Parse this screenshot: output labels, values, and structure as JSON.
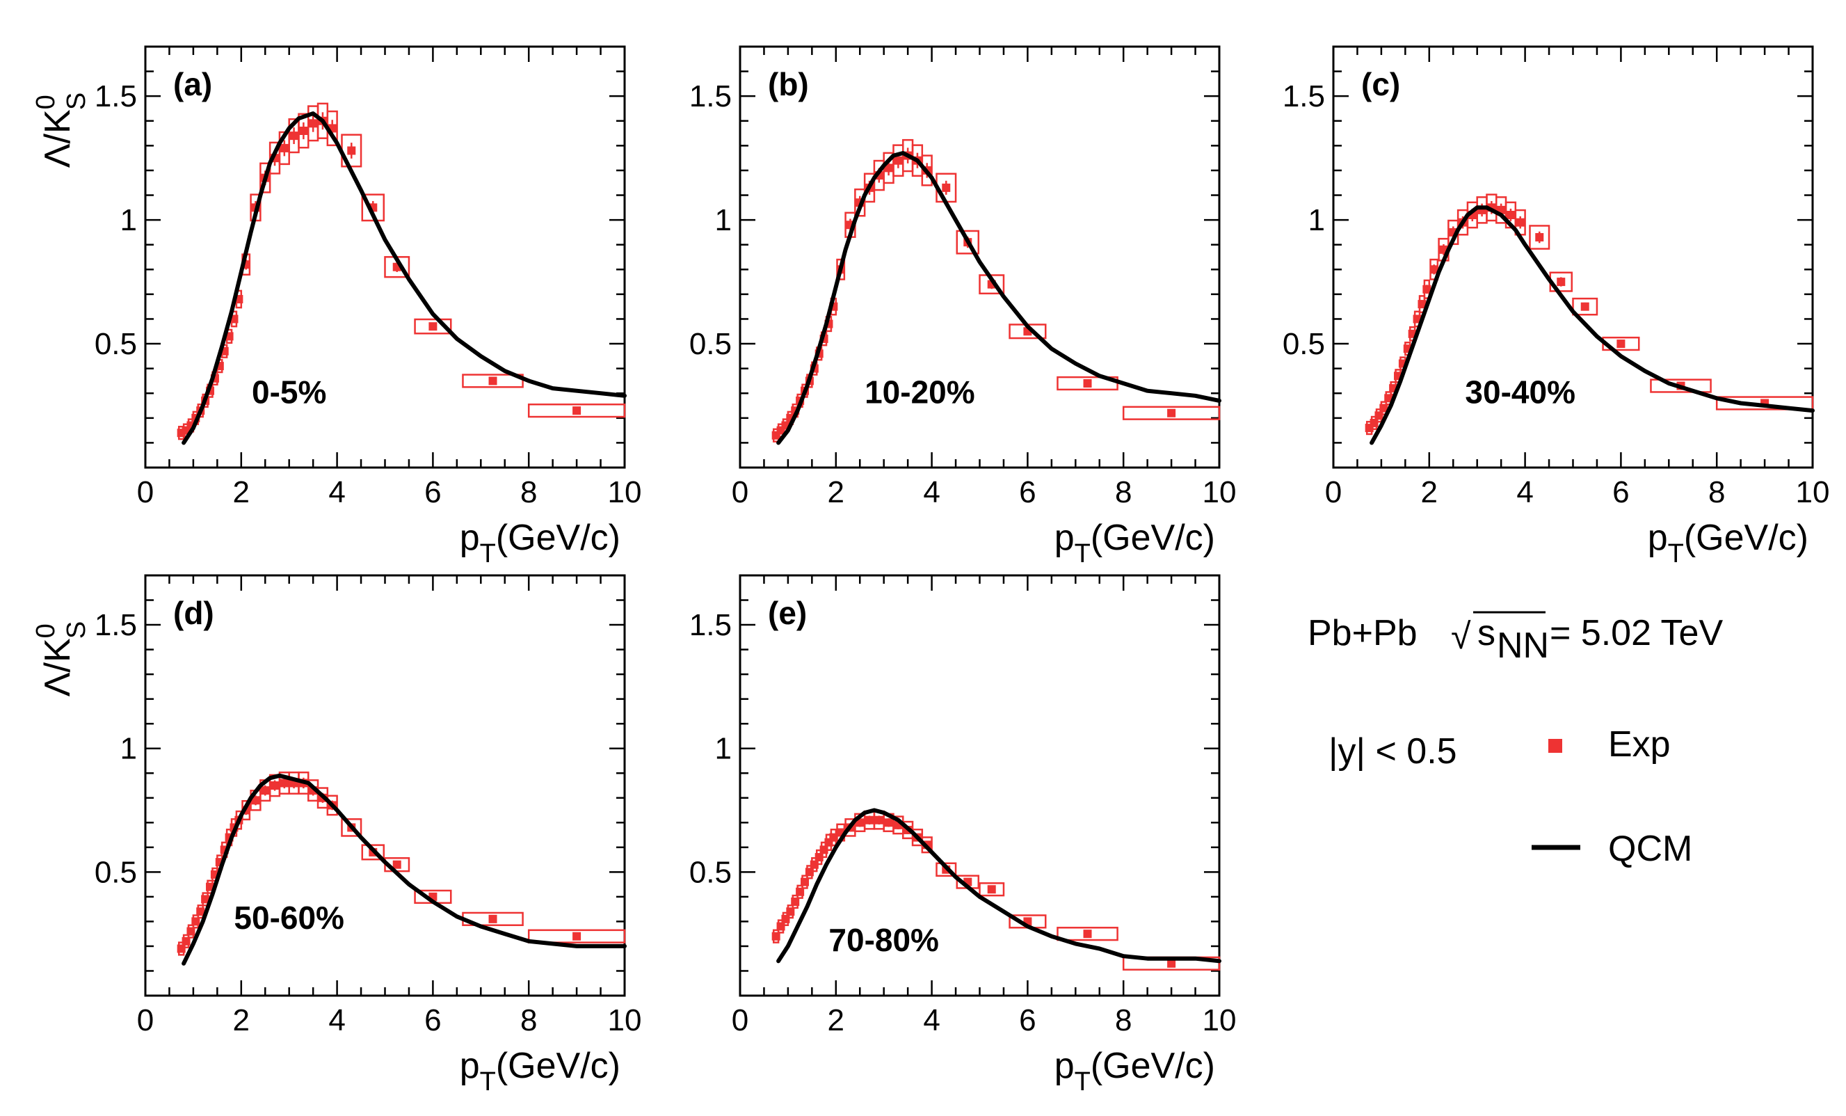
{
  "legend": {
    "system": "Pb+Pb",
    "sqrt_s_nn": "= 5.02 TeV",
    "rapidity": "|y| < 0.5",
    "exp_label": "Exp",
    "model_label": "QCM",
    "exp_color": "#ee3333",
    "model_color": "#000000"
  },
  "axis_text": {
    "xlabel_main": "p",
    "xlabel_sub": "T",
    "xlabel_unit": "(GeV/c)",
    "ylabel_main": "Λ/K",
    "ylabel_sup": "0",
    "ylabel_sub": "S"
  },
  "chart_data": [
    {
      "type": "scatter",
      "tag": "(a)",
      "centrality": "0-5%",
      "xlim": [
        0,
        10
      ],
      "ylim": [
        0,
        1.7
      ],
      "xticks": [
        "0",
        "2",
        "4",
        "6",
        "8",
        "10"
      ],
      "yticks": [
        "0.5",
        "1",
        "1.5"
      ],
      "exp": [
        [
          0.75,
          0.14
        ],
        [
          0.85,
          0.15
        ],
        [
          0.95,
          0.17
        ],
        [
          1.05,
          0.2
        ],
        [
          1.15,
          0.23
        ],
        [
          1.25,
          0.27
        ],
        [
          1.35,
          0.31
        ],
        [
          1.45,
          0.36
        ],
        [
          1.55,
          0.41
        ],
        [
          1.65,
          0.47
        ],
        [
          1.75,
          0.53
        ],
        [
          1.85,
          0.6
        ],
        [
          1.95,
          0.68
        ],
        [
          2.1,
          0.82
        ],
        [
          2.3,
          1.05
        ],
        [
          2.5,
          1.17
        ],
        [
          2.7,
          1.25
        ],
        [
          2.9,
          1.29
        ],
        [
          3.1,
          1.34
        ],
        [
          3.3,
          1.36
        ],
        [
          3.5,
          1.39
        ],
        [
          3.7,
          1.4
        ],
        [
          3.9,
          1.37
        ],
        [
          4.3,
          1.28
        ],
        [
          4.75,
          1.05
        ],
        [
          5.25,
          0.81
        ],
        [
          6.0,
          0.57
        ],
        [
          7.25,
          0.35
        ],
        [
          9.0,
          0.23
        ]
      ],
      "model": [
        [
          0.8,
          0.1
        ],
        [
          1.0,
          0.16
        ],
        [
          1.2,
          0.25
        ],
        [
          1.4,
          0.36
        ],
        [
          1.6,
          0.49
        ],
        [
          1.8,
          0.63
        ],
        [
          2.0,
          0.79
        ],
        [
          2.2,
          0.95
        ],
        [
          2.4,
          1.1
        ],
        [
          2.6,
          1.23
        ],
        [
          2.8,
          1.31
        ],
        [
          3.0,
          1.37
        ],
        [
          3.2,
          1.41
        ],
        [
          3.5,
          1.43
        ],
        [
          3.7,
          1.4
        ],
        [
          4.0,
          1.31
        ],
        [
          4.5,
          1.12
        ],
        [
          5.0,
          0.92
        ],
        [
          5.5,
          0.76
        ],
        [
          6.0,
          0.62
        ],
        [
          6.5,
          0.52
        ],
        [
          7.0,
          0.45
        ],
        [
          7.5,
          0.39
        ],
        [
          8.0,
          0.35
        ],
        [
          8.5,
          0.32
        ],
        [
          9.0,
          0.31
        ],
        [
          9.5,
          0.3
        ],
        [
          10.0,
          0.29
        ]
      ]
    },
    {
      "type": "scatter",
      "tag": "(b)",
      "centrality": "10-20%",
      "xlim": [
        0,
        10
      ],
      "ylim": [
        0,
        1.7
      ],
      "xticks": [
        "0",
        "2",
        "4",
        "6",
        "8",
        "10"
      ],
      "yticks": [
        "0.5",
        "1",
        "1.5"
      ],
      "exp": [
        [
          0.75,
          0.13
        ],
        [
          0.85,
          0.15
        ],
        [
          0.95,
          0.17
        ],
        [
          1.05,
          0.2
        ],
        [
          1.15,
          0.23
        ],
        [
          1.25,
          0.27
        ],
        [
          1.35,
          0.31
        ],
        [
          1.45,
          0.35
        ],
        [
          1.55,
          0.4
        ],
        [
          1.65,
          0.46
        ],
        [
          1.75,
          0.52
        ],
        [
          1.85,
          0.58
        ],
        [
          1.95,
          0.65
        ],
        [
          2.1,
          0.8
        ],
        [
          2.3,
          0.98
        ],
        [
          2.5,
          1.07
        ],
        [
          2.7,
          1.13
        ],
        [
          2.9,
          1.18
        ],
        [
          3.1,
          1.21
        ],
        [
          3.3,
          1.24
        ],
        [
          3.5,
          1.26
        ],
        [
          3.7,
          1.24
        ],
        [
          3.9,
          1.2
        ],
        [
          4.3,
          1.13
        ],
        [
          4.75,
          0.91
        ],
        [
          5.25,
          0.74
        ],
        [
          6.0,
          0.55
        ],
        [
          7.25,
          0.34
        ],
        [
          9.0,
          0.22
        ]
      ],
      "model": [
        [
          0.8,
          0.1
        ],
        [
          1.0,
          0.15
        ],
        [
          1.2,
          0.23
        ],
        [
          1.4,
          0.33
        ],
        [
          1.6,
          0.45
        ],
        [
          1.8,
          0.58
        ],
        [
          2.0,
          0.73
        ],
        [
          2.2,
          0.88
        ],
        [
          2.4,
          1.0
        ],
        [
          2.6,
          1.1
        ],
        [
          2.8,
          1.17
        ],
        [
          3.0,
          1.22
        ],
        [
          3.2,
          1.26
        ],
        [
          3.4,
          1.27
        ],
        [
          3.7,
          1.24
        ],
        [
          4.0,
          1.17
        ],
        [
          4.5,
          1.0
        ],
        [
          5.0,
          0.83
        ],
        [
          5.5,
          0.69
        ],
        [
          6.0,
          0.57
        ],
        [
          6.5,
          0.48
        ],
        [
          7.0,
          0.42
        ],
        [
          7.5,
          0.37
        ],
        [
          8.0,
          0.34
        ],
        [
          8.5,
          0.31
        ],
        [
          9.0,
          0.3
        ],
        [
          9.5,
          0.29
        ],
        [
          10.0,
          0.27
        ]
      ]
    },
    {
      "type": "scatter",
      "tag": "(c)",
      "centrality": "30-40%",
      "xlim": [
        0,
        10
      ],
      "ylim": [
        0,
        1.7
      ],
      "xticks": [
        "0",
        "2",
        "4",
        "6",
        "8",
        "10"
      ],
      "yticks": [
        "0.5",
        "1",
        "1.5"
      ],
      "exp": [
        [
          0.75,
          0.16
        ],
        [
          0.85,
          0.18
        ],
        [
          0.95,
          0.21
        ],
        [
          1.05,
          0.24
        ],
        [
          1.15,
          0.28
        ],
        [
          1.25,
          0.32
        ],
        [
          1.35,
          0.37
        ],
        [
          1.45,
          0.42
        ],
        [
          1.55,
          0.48
        ],
        [
          1.65,
          0.54
        ],
        [
          1.75,
          0.6
        ],
        [
          1.85,
          0.66
        ],
        [
          1.95,
          0.72
        ],
        [
          2.1,
          0.8
        ],
        [
          2.3,
          0.88
        ],
        [
          2.5,
          0.95
        ],
        [
          2.7,
          0.99
        ],
        [
          2.9,
          1.02
        ],
        [
          3.1,
          1.04
        ],
        [
          3.3,
          1.05
        ],
        [
          3.5,
          1.04
        ],
        [
          3.7,
          1.02
        ],
        [
          3.9,
          0.99
        ],
        [
          4.3,
          0.93
        ],
        [
          4.75,
          0.75
        ],
        [
          5.25,
          0.65
        ],
        [
          6.0,
          0.5
        ],
        [
          7.25,
          0.33
        ],
        [
          9.0,
          0.26
        ]
      ],
      "model": [
        [
          0.8,
          0.1
        ],
        [
          1.0,
          0.17
        ],
        [
          1.2,
          0.25
        ],
        [
          1.4,
          0.35
        ],
        [
          1.6,
          0.46
        ],
        [
          1.8,
          0.57
        ],
        [
          2.0,
          0.68
        ],
        [
          2.2,
          0.79
        ],
        [
          2.4,
          0.88
        ],
        [
          2.6,
          0.96
        ],
        [
          2.8,
          1.02
        ],
        [
          3.0,
          1.05
        ],
        [
          3.2,
          1.05
        ],
        [
          3.5,
          1.02
        ],
        [
          3.8,
          0.96
        ],
        [
          4.0,
          0.9
        ],
        [
          4.5,
          0.76
        ],
        [
          5.0,
          0.63
        ],
        [
          5.5,
          0.53
        ],
        [
          6.0,
          0.45
        ],
        [
          6.5,
          0.39
        ],
        [
          7.0,
          0.34
        ],
        [
          7.5,
          0.31
        ],
        [
          8.0,
          0.28
        ],
        [
          8.5,
          0.26
        ],
        [
          9.0,
          0.25
        ],
        [
          9.5,
          0.24
        ],
        [
          10.0,
          0.23
        ]
      ]
    },
    {
      "type": "scatter",
      "tag": "(d)",
      "centrality": "50-60%",
      "xlim": [
        0,
        10
      ],
      "ylim": [
        0,
        1.7
      ],
      "xticks": [
        "0",
        "2",
        "4",
        "6",
        "8",
        "10"
      ],
      "yticks": [
        "0.5",
        "1",
        "1.5"
      ],
      "exp": [
        [
          0.75,
          0.19
        ],
        [
          0.85,
          0.22
        ],
        [
          0.95,
          0.26
        ],
        [
          1.05,
          0.3
        ],
        [
          1.15,
          0.34
        ],
        [
          1.25,
          0.39
        ],
        [
          1.35,
          0.44
        ],
        [
          1.45,
          0.49
        ],
        [
          1.55,
          0.54
        ],
        [
          1.65,
          0.59
        ],
        [
          1.75,
          0.64
        ],
        [
          1.85,
          0.68
        ],
        [
          1.95,
          0.71
        ],
        [
          2.1,
          0.75
        ],
        [
          2.3,
          0.79
        ],
        [
          2.5,
          0.83
        ],
        [
          2.7,
          0.85
        ],
        [
          2.9,
          0.86
        ],
        [
          3.1,
          0.86
        ],
        [
          3.3,
          0.86
        ],
        [
          3.5,
          0.83
        ],
        [
          3.7,
          0.8
        ],
        [
          3.9,
          0.77
        ],
        [
          4.3,
          0.68
        ],
        [
          4.75,
          0.58
        ],
        [
          5.25,
          0.53
        ],
        [
          6.0,
          0.4
        ],
        [
          7.25,
          0.31
        ],
        [
          9.0,
          0.24
        ]
      ],
      "model": [
        [
          0.8,
          0.13
        ],
        [
          1.0,
          0.21
        ],
        [
          1.2,
          0.3
        ],
        [
          1.4,
          0.41
        ],
        [
          1.6,
          0.53
        ],
        [
          1.8,
          0.64
        ],
        [
          2.0,
          0.73
        ],
        [
          2.2,
          0.8
        ],
        [
          2.4,
          0.85
        ],
        [
          2.6,
          0.88
        ],
        [
          2.8,
          0.89
        ],
        [
          3.0,
          0.88
        ],
        [
          3.4,
          0.86
        ],
        [
          3.8,
          0.79
        ],
        [
          4.0,
          0.75
        ],
        [
          4.5,
          0.64
        ],
        [
          5.0,
          0.54
        ],
        [
          5.5,
          0.45
        ],
        [
          6.0,
          0.38
        ],
        [
          6.5,
          0.32
        ],
        [
          7.0,
          0.28
        ],
        [
          7.5,
          0.25
        ],
        [
          8.0,
          0.22
        ],
        [
          8.5,
          0.21
        ],
        [
          9.0,
          0.2
        ],
        [
          9.5,
          0.2
        ],
        [
          10.0,
          0.2
        ]
      ]
    },
    {
      "type": "scatter",
      "tag": "(e)",
      "centrality": "70-80%",
      "xlim": [
        0,
        10
      ],
      "ylim": [
        0,
        1.7
      ],
      "xticks": [
        "0",
        "2",
        "4",
        "6",
        "8",
        "10"
      ],
      "yticks": [
        "0.5",
        "1",
        "1.5"
      ],
      "exp": [
        [
          0.75,
          0.24
        ],
        [
          0.85,
          0.28
        ],
        [
          0.95,
          0.31
        ],
        [
          1.05,
          0.34
        ],
        [
          1.15,
          0.38
        ],
        [
          1.25,
          0.42
        ],
        [
          1.35,
          0.46
        ],
        [
          1.45,
          0.5
        ],
        [
          1.55,
          0.53
        ],
        [
          1.65,
          0.56
        ],
        [
          1.75,
          0.59
        ],
        [
          1.85,
          0.62
        ],
        [
          1.95,
          0.64
        ],
        [
          2.1,
          0.66
        ],
        [
          2.3,
          0.68
        ],
        [
          2.5,
          0.7
        ],
        [
          2.7,
          0.71
        ],
        [
          2.9,
          0.71
        ],
        [
          3.1,
          0.7
        ],
        [
          3.3,
          0.69
        ],
        [
          3.5,
          0.67
        ],
        [
          3.7,
          0.64
        ],
        [
          3.9,
          0.61
        ],
        [
          4.3,
          0.51
        ],
        [
          4.75,
          0.46
        ],
        [
          5.25,
          0.43
        ],
        [
          6.0,
          0.3
        ],
        [
          7.25,
          0.25
        ],
        [
          9.0,
          0.13
        ]
      ],
      "model": [
        [
          0.8,
          0.14
        ],
        [
          1.0,
          0.2
        ],
        [
          1.2,
          0.28
        ],
        [
          1.4,
          0.36
        ],
        [
          1.6,
          0.45
        ],
        [
          1.8,
          0.53
        ],
        [
          2.0,
          0.6
        ],
        [
          2.2,
          0.66
        ],
        [
          2.4,
          0.71
        ],
        [
          2.6,
          0.74
        ],
        [
          2.8,
          0.75
        ],
        [
          3.0,
          0.74
        ],
        [
          3.3,
          0.71
        ],
        [
          3.6,
          0.66
        ],
        [
          4.0,
          0.58
        ],
        [
          4.5,
          0.48
        ],
        [
          5.0,
          0.4
        ],
        [
          5.5,
          0.34
        ],
        [
          6.0,
          0.28
        ],
        [
          6.5,
          0.24
        ],
        [
          7.0,
          0.21
        ],
        [
          7.5,
          0.19
        ],
        [
          8.0,
          0.16
        ],
        [
          8.5,
          0.15
        ],
        [
          9.0,
          0.15
        ],
        [
          9.5,
          0.15
        ],
        [
          10.0,
          0.14
        ]
      ]
    }
  ]
}
